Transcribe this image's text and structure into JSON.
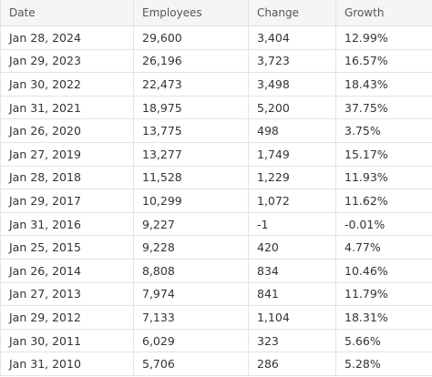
{
  "table": {
    "header": [
      "Date",
      "Employees",
      "Change",
      "Growth"
    ],
    "rows": [
      [
        "Jan 28, 2024",
        "29,600",
        "3,404",
        "12.99%"
      ],
      [
        "Jan 29, 2023",
        "26,196",
        "3,723",
        "16.57%"
      ],
      [
        "Jan 30, 2022",
        "22,473",
        "3,498",
        "18.43%"
      ],
      [
        "Jan 31, 2021",
        "18,975",
        "5,200",
        "37.75%"
      ],
      [
        "Jan 26, 2020",
        "13,775",
        "498",
        "3.75%"
      ],
      [
        "Jan 27, 2019",
        "13,277",
        "1,749",
        "15.17%"
      ],
      [
        "Jan 28, 2018",
        "11,528",
        "1,229",
        "11.93%"
      ],
      [
        "Jan 29, 2017",
        "10,299",
        "1,072",
        "11.62%"
      ],
      [
        "Jan 31, 2016",
        "9,227",
        "-1",
        "-0.01%"
      ],
      [
        "Jan 25, 2015",
        "9,228",
        "420",
        "4.77%"
      ],
      [
        "Jan 26, 2014",
        "8,808",
        "834",
        "10.46%"
      ],
      [
        "Jan 27, 2013",
        "7,974",
        "841",
        "11.79%"
      ],
      [
        "Jan 29, 2012",
        "7,133",
        "1,104",
        "18.31%"
      ],
      [
        "Jan 30, 2011",
        "6,029",
        "323",
        "5.66%"
      ],
      [
        "Jan 31, 2010",
        "5,706",
        "286",
        "5.28%"
      ]
    ]
  }
}
